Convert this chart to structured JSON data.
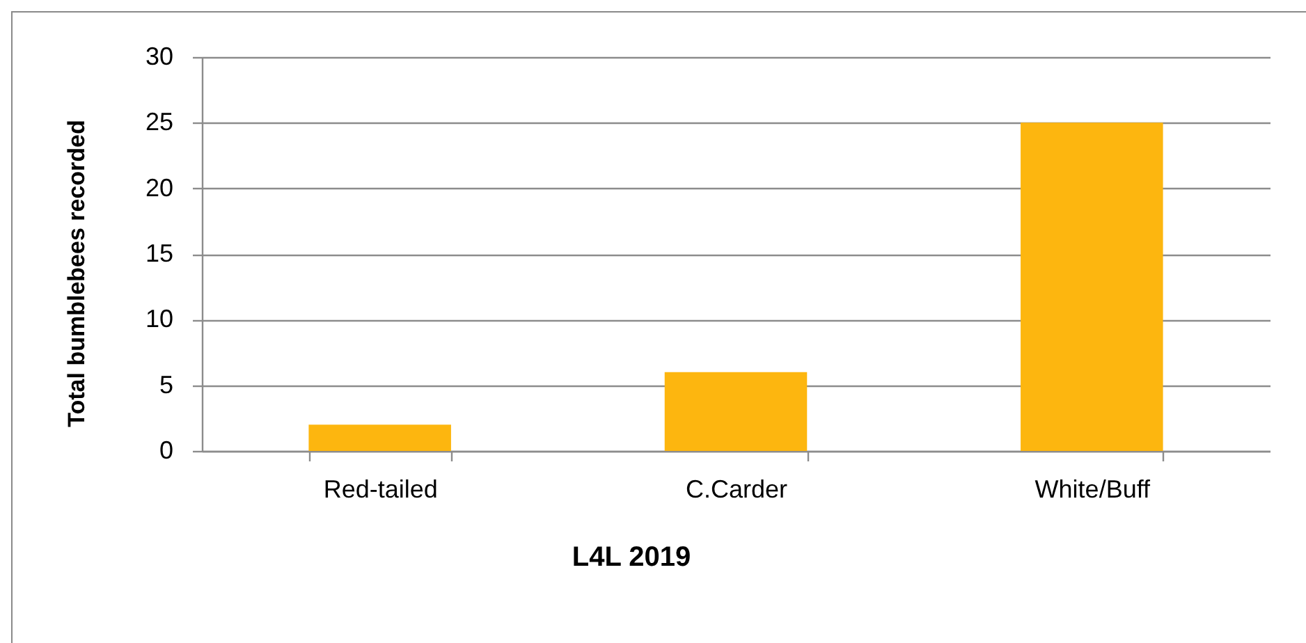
{
  "chart_data": {
    "type": "bar",
    "xlabel": "L4L 2019",
    "ylabel": "Total bumblebees recorded",
    "categories": [
      "Red-tailed",
      "C.Carder",
      "White/Buff"
    ],
    "values": [
      2,
      6,
      25
    ],
    "color": "#fdb60f",
    "ylim": [
      0,
      30
    ],
    "yticks": [
      0,
      5,
      10,
      15,
      20,
      25,
      30
    ],
    "grid": "y"
  }
}
